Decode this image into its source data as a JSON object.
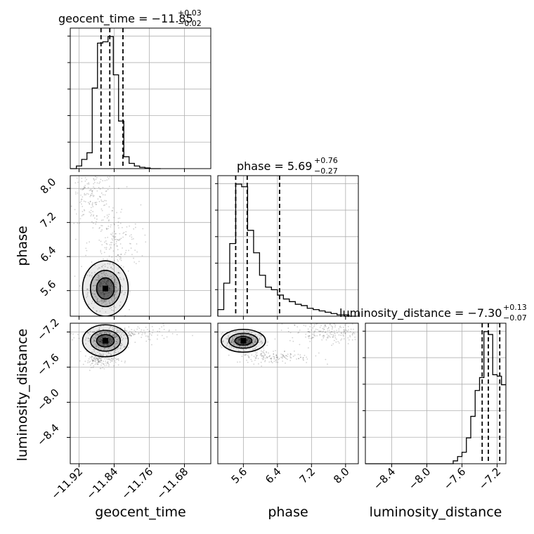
{
  "chart_data": {
    "type": "corner",
    "parameters": [
      "geocent_time",
      "phase",
      "luminosity_distance"
    ],
    "axis_labels": {
      "geocent_time": "geocent_time",
      "phase": "phase",
      "luminosity_distance": "luminosity_distance"
    },
    "titles": {
      "geocent_time": {
        "text": "geocent_time = −11.85",
        "plus": "+0.03",
        "minus": "−0.02"
      },
      "phase": {
        "text": "phase = 5.69",
        "plus": "+0.76",
        "minus": "−0.27"
      },
      "luminosity_distance": {
        "text": "luminosity_distance = −7.30",
        "plus": "+0.13",
        "minus": "−0.07"
      }
    },
    "ranges": {
      "geocent_time": [
        -11.94,
        -11.62
      ],
      "phase": [
        5.0,
        8.3
      ],
      "luminosity_distance": [
        -8.7,
        -7.1
      ]
    },
    "ticks": {
      "geocent_time": [
        -11.92,
        -11.84,
        -11.76,
        -11.68
      ],
      "phase": [
        5.6,
        6.4,
        7.2,
        8.0
      ],
      "luminosity_distance": [
        -8.4,
        -8.0,
        -7.6,
        -7.2
      ]
    },
    "tick_labels": {
      "geocent_time": [
        "−11.92",
        "−11.84",
        "−11.76",
        "−11.68"
      ],
      "phase": [
        "5.6",
        "6.4",
        "7.2",
        "8.0"
      ],
      "luminosity_distance": [
        "−8.4",
        "−8.0",
        "−7.6",
        "−7.2"
      ]
    },
    "quantiles": {
      "geocent_time": [
        -11.87,
        -11.85,
        -11.82
      ],
      "phase": [
        5.42,
        5.69,
        6.45
      ],
      "luminosity_distance": [
        -7.37,
        -7.3,
        -7.17
      ]
    },
    "histograms": {
      "geocent_time": {
        "edges": [
          -11.94,
          -11.926,
          -11.914,
          -11.902,
          -11.89,
          -11.878,
          -11.866,
          -11.854,
          -11.842,
          -11.83,
          -11.818,
          -11.806,
          -11.794,
          -11.782,
          -11.77,
          -11.758,
          -11.746,
          -11.734
        ],
        "counts": [
          0,
          0.02,
          0.07,
          0.12,
          0.61,
          0.95,
          0.96,
          1.0,
          0.71,
          0.36,
          0.09,
          0.04,
          0.02,
          0.01,
          0.005,
          0,
          0
        ]
      },
      "phase": {
        "edges": [
          5.0,
          5.14,
          5.28,
          5.42,
          5.56,
          5.7,
          5.84,
          5.98,
          6.12,
          6.26,
          6.4,
          6.54,
          6.68,
          6.82,
          6.96,
          7.1,
          7.24,
          7.38,
          7.52,
          7.66,
          7.8,
          7.94,
          8.08,
          8.22
        ],
        "counts": [
          0.05,
          0.25,
          0.55,
          1.0,
          0.98,
          0.65,
          0.48,
          0.31,
          0.22,
          0.2,
          0.16,
          0.13,
          0.11,
          0.09,
          0.08,
          0.06,
          0.05,
          0.04,
          0.03,
          0.02,
          0.01,
          0.01,
          0.0
        ]
      },
      "luminosity_distance": {
        "edges": [
          -8.7,
          -7.7,
          -7.65,
          -7.6,
          -7.55,
          -7.5,
          -7.45,
          -7.4,
          -7.35,
          -7.3,
          -7.25,
          -7.2,
          -7.15,
          -7.1
        ],
        "counts": [
          0,
          0.02,
          0.05,
          0.08,
          0.18,
          0.33,
          0.51,
          0.6,
          0.92,
          0.9,
          0.62,
          0.61,
          0.55
        ]
      }
    },
    "sample_clusters": [
      {
        "x": "geocent_time",
        "y": "phase",
        "cx": -11.86,
        "cy": 5.65,
        "sx": 0.02,
        "sy": 0.25,
        "n": 380
      },
      {
        "x": "geocent_time",
        "y": "phase",
        "cx": -11.89,
        "cy": 7.8,
        "sx": 0.025,
        "sy": 0.3,
        "n": 160
      },
      {
        "x": "geocent_time",
        "y": "phase",
        "cx": -11.84,
        "cy": 6.7,
        "sx": 0.03,
        "sy": 0.45,
        "n": 180
      },
      {
        "x": "geocent_time",
        "y": "luminosity_distance",
        "cx": -11.86,
        "cy": -7.3,
        "sx": 0.02,
        "sy": 0.07,
        "n": 380
      },
      {
        "x": "geocent_time",
        "y": "luminosity_distance",
        "cx": -11.87,
        "cy": -7.52,
        "sx": 0.02,
        "sy": 0.04,
        "n": 150
      },
      {
        "x": "geocent_time",
        "y": "luminosity_distance",
        "cx": -11.81,
        "cy": -7.22,
        "sx": 0.05,
        "sy": 0.05,
        "n": 150
      },
      {
        "x": "phase",
        "y": "luminosity_distance",
        "cx": 5.6,
        "cy": -7.3,
        "sx": 0.2,
        "sy": 0.05,
        "n": 380
      },
      {
        "x": "phase",
        "y": "luminosity_distance",
        "cx": 6.3,
        "cy": -7.48,
        "sx": 0.45,
        "sy": 0.04,
        "n": 150
      },
      {
        "x": "phase",
        "y": "luminosity_distance",
        "cx": 7.6,
        "cy": -7.2,
        "sx": 0.45,
        "sy": 0.06,
        "n": 200
      }
    ],
    "grid": true,
    "colors": {
      "line": "#000000",
      "grid": "#b0b0b0",
      "points": "#000000"
    }
  }
}
